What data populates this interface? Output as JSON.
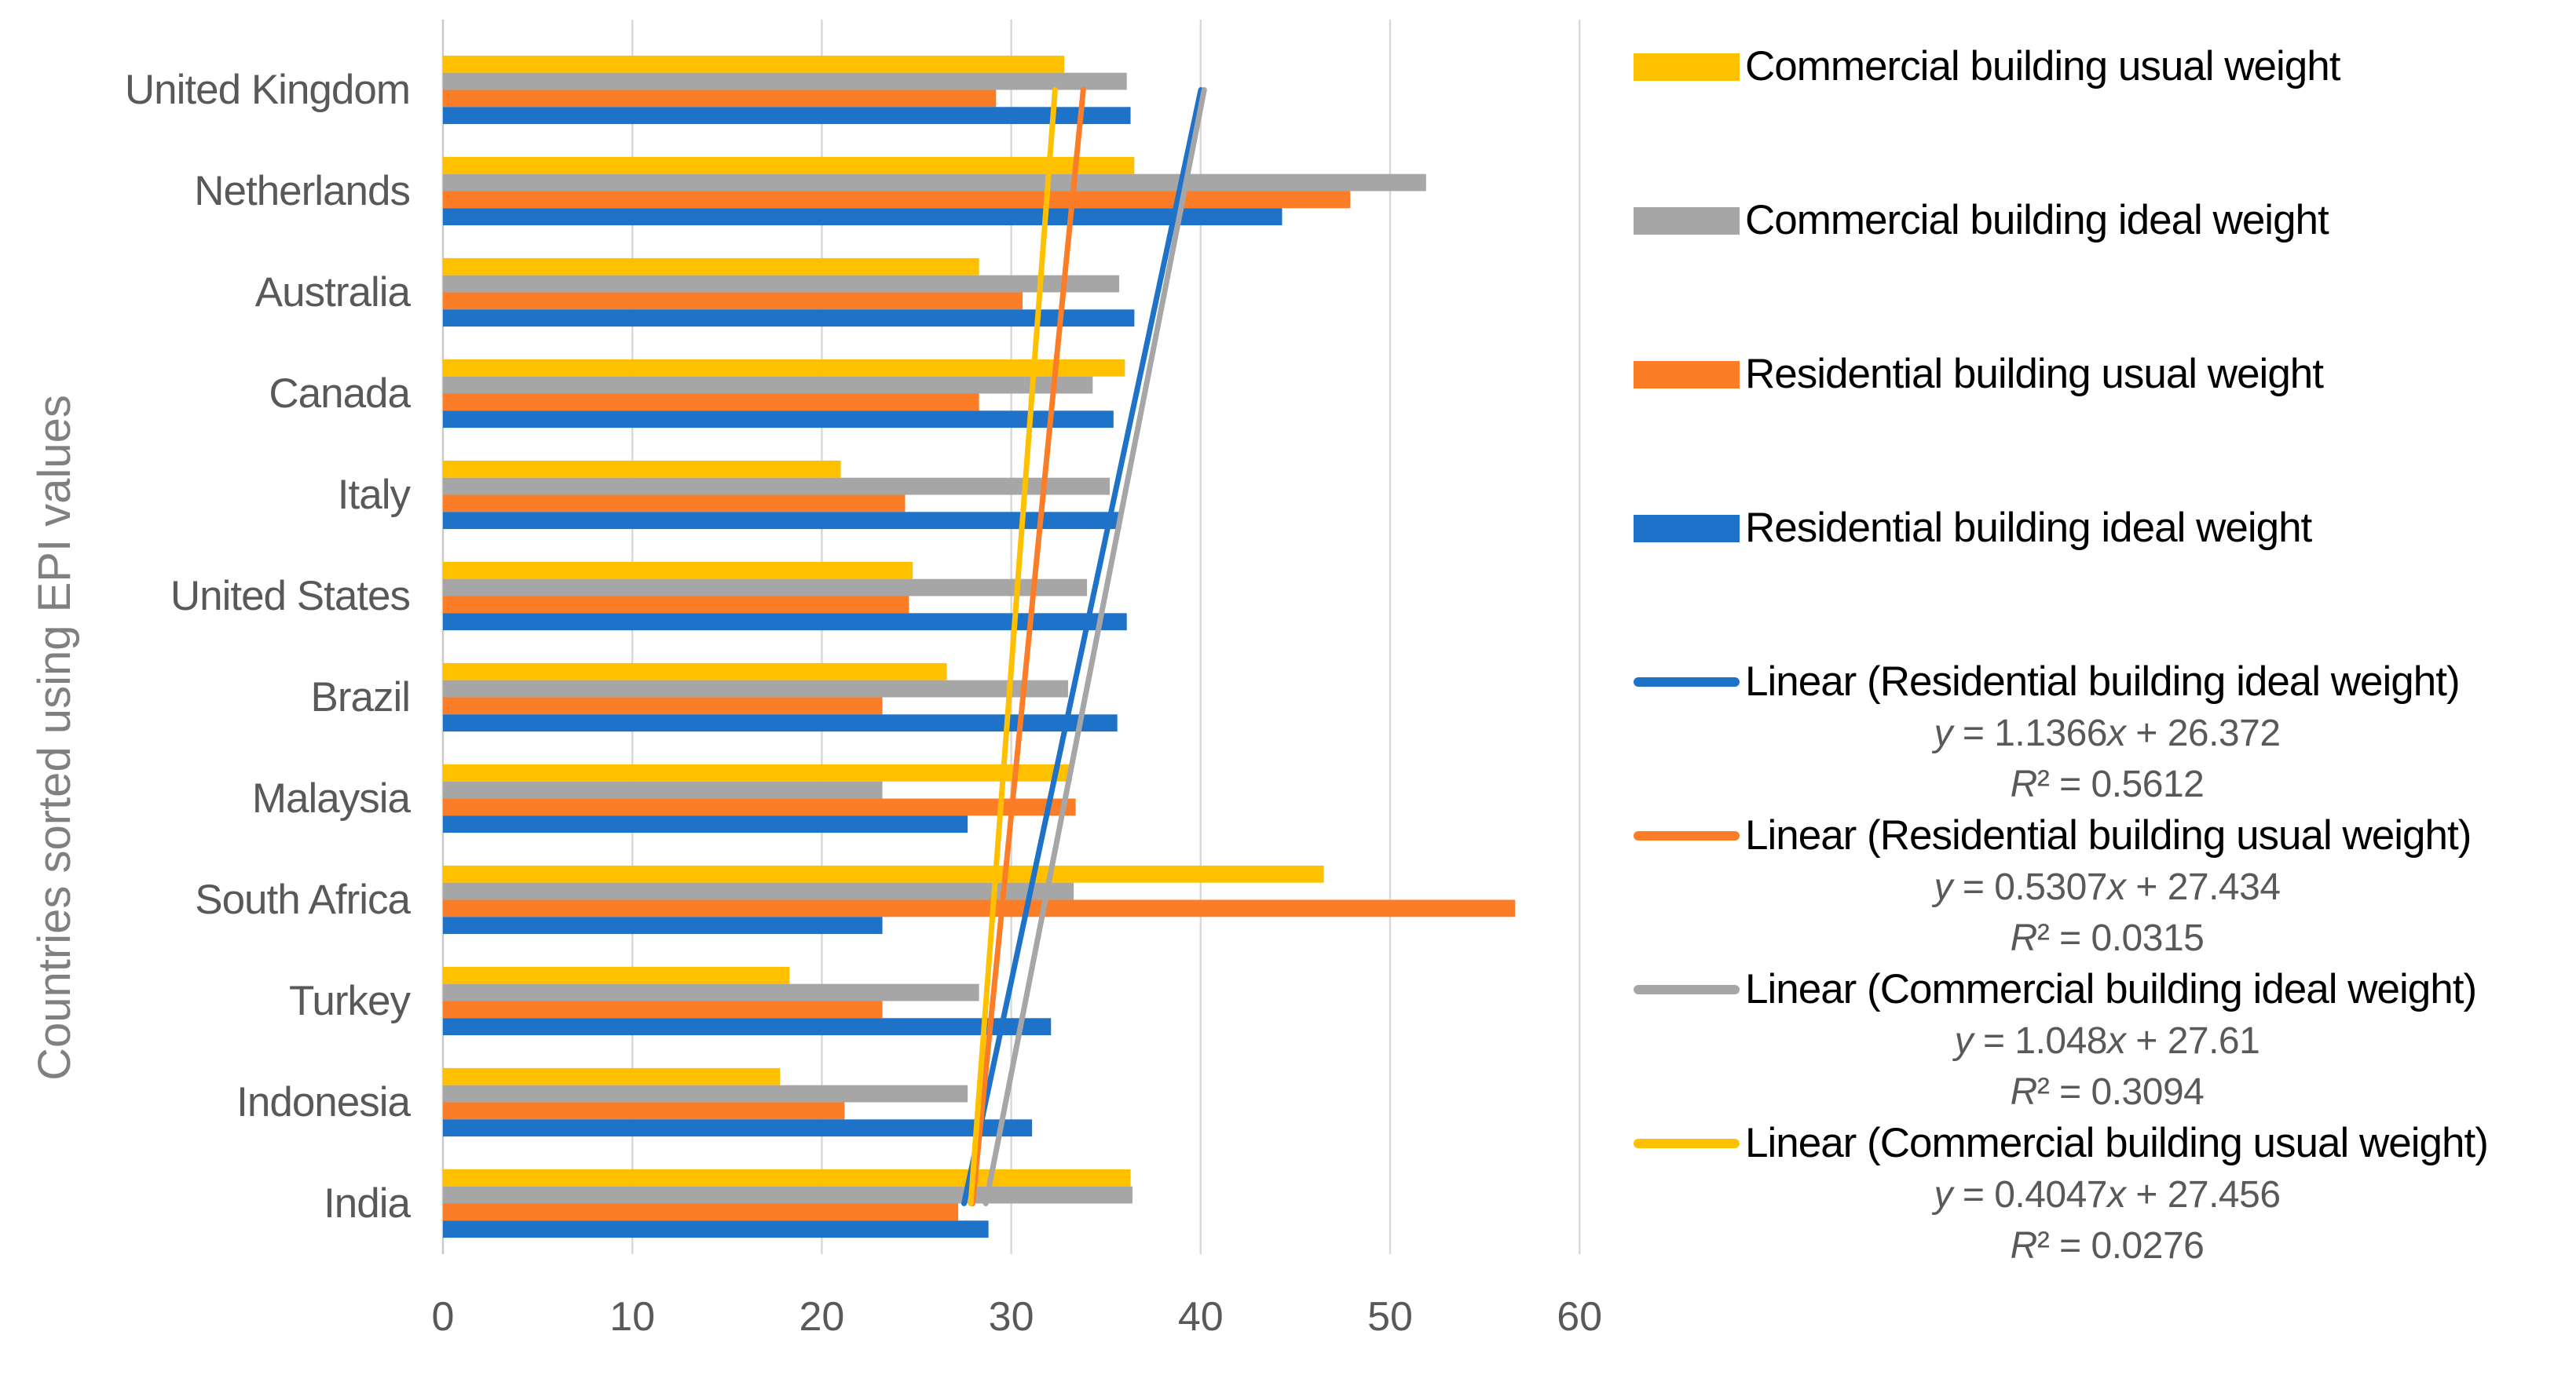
{
  "chart_data": {
    "type": "bar",
    "orientation": "horizontal",
    "title": "",
    "xlabel": "",
    "ylabel": "Countries sorted using EPI values",
    "xlim": [
      0,
      60
    ],
    "xticks": [
      0,
      10,
      20,
      30,
      40,
      50,
      60
    ],
    "grid": true,
    "legend_position": "right",
    "categories": [
      "United Kingdom",
      "Netherlands",
      "Australia",
      "Canada",
      "Italy",
      "United States",
      "Brazil",
      "Malaysia",
      "South Africa",
      "Turkey",
      "Indonesia",
      "India"
    ],
    "series": [
      {
        "name": "Commercial building usual weight",
        "color": "#FFC000",
        "values": [
          32.8,
          36.5,
          28.3,
          36.0,
          21.0,
          24.8,
          26.6,
          33.2,
          46.5,
          18.3,
          17.8,
          36.3
        ]
      },
      {
        "name": "Commercial building ideal weight",
        "color": "#A6A6A6",
        "values": [
          36.1,
          51.9,
          35.7,
          34.3,
          35.2,
          34.0,
          33.0,
          23.2,
          33.3,
          28.3,
          27.7,
          36.4
        ]
      },
      {
        "name": "Residential building usual weight",
        "color": "#FB7D28",
        "values": [
          29.2,
          47.9,
          30.6,
          28.3,
          24.4,
          24.6,
          23.2,
          33.4,
          56.6,
          23.2,
          21.2,
          27.2
        ]
      },
      {
        "name": "Residential building ideal weight",
        "color": "#1E73C8",
        "values": [
          36.3,
          44.3,
          36.5,
          35.4,
          35.8,
          36.1,
          35.6,
          27.7,
          23.2,
          32.1,
          31.1,
          28.8
        ]
      }
    ],
    "trendlines": [
      {
        "name": "Linear (Residential building ideal weight)",
        "color": "#1E73C8",
        "slope": 1.1366,
        "intercept": 26.372,
        "equation": "y = 1.1366x + 26.372",
        "r2": "R² = 0.5612"
      },
      {
        "name": "Linear (Residential building usual weight)",
        "color": "#FB7D28",
        "slope": 0.5307,
        "intercept": 27.434,
        "equation": "y = 0.5307x + 27.434",
        "r2": "R² = 0.0315"
      },
      {
        "name": "Linear (Commercial building ideal weight)",
        "color": "#A6A6A6",
        "slope": 1.048,
        "intercept": 27.61,
        "equation": "y = 1.048x + 27.61",
        "r2": "R² = 0.3094"
      },
      {
        "name": "Linear (Commercial building usual weight)",
        "color": "#FFC000",
        "slope": 0.4047,
        "intercept": 27.456,
        "equation": "y = 0.4047x + 27.456",
        "r2": "R² = 0.0276"
      }
    ]
  },
  "colors": {
    "background": "#FFFFFF",
    "gridline": "#D9D9D9",
    "axis_line": "#C9C9C9",
    "axis_text": "#595959",
    "ytitle_text": "#808080",
    "legend_text": "#000000",
    "equation_text": "#595959"
  }
}
